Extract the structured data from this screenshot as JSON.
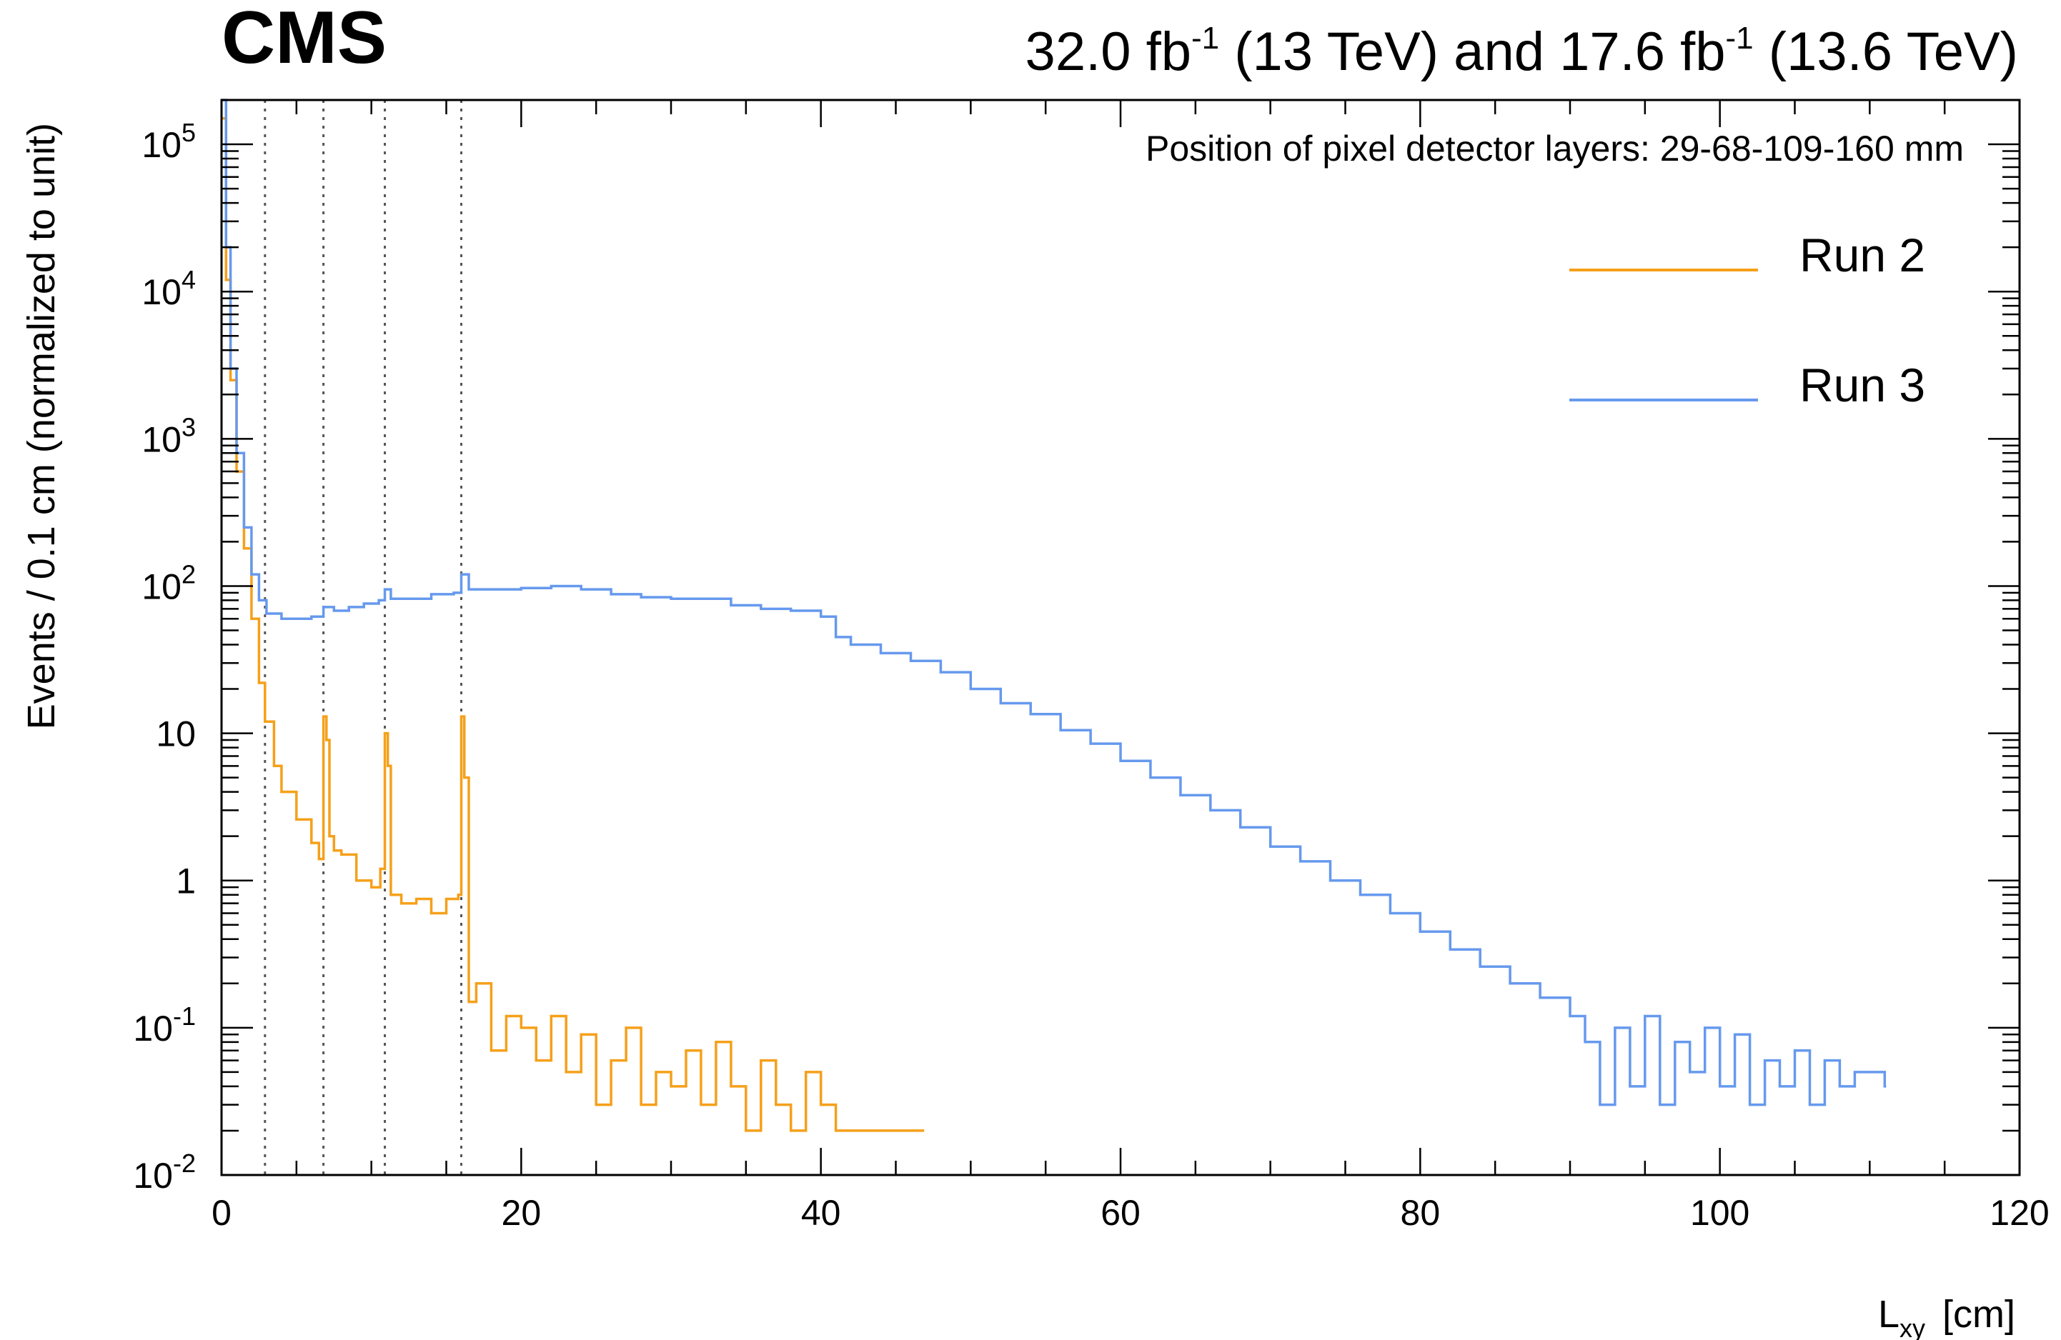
{
  "experiment": "CMS",
  "lumi": {
    "part1": "32.0 fb",
    "sup1": "-1",
    "part2": " (13 TeV) and 17.6 fb",
    "sup2": "-1",
    "part3": " (13.6 TeV)"
  },
  "annotation": "Position of pixel detector layers: 29-68-109-160 mm",
  "chart_data": {
    "type": "line",
    "xlabel_main": "L",
    "xlabel_sub": "xy",
    "xlabel_unit": "[cm]",
    "ylabel": "Events / 0.1 cm (normalized to unit)",
    "xlim": [
      0,
      120
    ],
    "ylim": [
      0.01,
      200000
    ],
    "yscale": "log",
    "x_ticks": [
      "0",
      "20",
      "40",
      "60",
      "80",
      "100",
      "120"
    ],
    "y_ticks": [
      {
        "value": 0.01,
        "base": "10",
        "sup": "-2"
      },
      {
        "value": 0.1,
        "base": "10",
        "sup": "-1"
      },
      {
        "value": 1,
        "base": "1",
        "sup": ""
      },
      {
        "value": 10,
        "base": "10",
        "sup": ""
      },
      {
        "value": 100,
        "base": "10",
        "sup": "2"
      },
      {
        "value": 1000,
        "base": "10",
        "sup": "3"
      },
      {
        "value": 10000,
        "base": "10",
        "sup": "4"
      },
      {
        "value": 100000,
        "base": "10",
        "sup": "5"
      }
    ],
    "layer_positions_cm": [
      2.9,
      6.8,
      10.9,
      16.0
    ],
    "legend_position": "top-right",
    "series": [
      {
        "name": "Run 2",
        "color": "#f5a01a",
        "points": [
          [
            0.0,
            150000
          ],
          [
            0.3,
            12000
          ],
          [
            0.6,
            2500
          ],
          [
            1.0,
            600
          ],
          [
            1.5,
            180
          ],
          [
            2.0,
            60
          ],
          [
            2.5,
            22
          ],
          [
            2.9,
            12
          ],
          [
            3.5,
            6
          ],
          [
            4.0,
            4
          ],
          [
            5.0,
            2.6
          ],
          [
            6.0,
            1.8
          ],
          [
            6.5,
            1.4
          ],
          [
            6.8,
            13
          ],
          [
            7.0,
            9
          ],
          [
            7.2,
            2.0
          ],
          [
            7.5,
            1.6
          ],
          [
            8.0,
            1.5
          ],
          [
            9.0,
            1.0
          ],
          [
            10.0,
            0.9
          ],
          [
            10.6,
            1.2
          ],
          [
            10.9,
            10
          ],
          [
            11.1,
            6
          ],
          [
            11.3,
            0.8
          ],
          [
            12.0,
            0.7
          ],
          [
            13.0,
            0.75
          ],
          [
            14.0,
            0.6
          ],
          [
            15.0,
            0.75
          ],
          [
            15.8,
            0.8
          ],
          [
            16.0,
            13
          ],
          [
            16.2,
            5
          ],
          [
            16.5,
            0.15
          ],
          [
            17.0,
            0.2
          ],
          [
            18.0,
            0.07
          ],
          [
            19.0,
            0.12
          ],
          [
            20.0,
            0.1
          ],
          [
            21.0,
            0.06
          ],
          [
            22.0,
            0.12
          ],
          [
            23.0,
            0.05
          ],
          [
            24.0,
            0.09
          ],
          [
            25.0,
            0.03
          ],
          [
            26.0,
            0.06
          ],
          [
            27.0,
            0.1
          ],
          [
            28.0,
            0.03
          ],
          [
            29.0,
            0.05
          ],
          [
            30.0,
            0.04
          ],
          [
            31.0,
            0.07
          ],
          [
            32.0,
            0.03
          ],
          [
            33.0,
            0.08
          ],
          [
            34.0,
            0.04
          ],
          [
            35.0,
            0.02
          ],
          [
            36.0,
            0.06
          ],
          [
            37.0,
            0.03
          ],
          [
            38.0,
            0.02
          ],
          [
            39.0,
            0.05
          ],
          [
            40.0,
            0.03
          ],
          [
            41.0,
            0.02
          ],
          [
            43.0,
            0.02
          ],
          [
            44.0,
            0.02
          ],
          [
            46.0,
            0.02
          ],
          [
            46.8,
            0.02
          ]
        ]
      },
      {
        "name": "Run 3",
        "color": "#6699ee",
        "points": [
          [
            0.0,
            200000
          ],
          [
            0.3,
            20000
          ],
          [
            0.6,
            3000
          ],
          [
            1.0,
            800
          ],
          [
            1.5,
            250
          ],
          [
            2.0,
            120
          ],
          [
            2.5,
            80
          ],
          [
            3.0,
            65
          ],
          [
            4.0,
            60
          ],
          [
            5.0,
            60
          ],
          [
            6.0,
            62
          ],
          [
            6.8,
            72
          ],
          [
            7.5,
            68
          ],
          [
            8.5,
            72
          ],
          [
            9.5,
            76
          ],
          [
            10.5,
            80
          ],
          [
            10.9,
            95
          ],
          [
            11.3,
            82
          ],
          [
            12.5,
            82
          ],
          [
            14.0,
            88
          ],
          [
            15.5,
            90
          ],
          [
            16.0,
            120
          ],
          [
            16.5,
            95
          ],
          [
            18.0,
            95
          ],
          [
            20.0,
            97
          ],
          [
            22.0,
            100
          ],
          [
            24.0,
            95
          ],
          [
            26.0,
            88
          ],
          [
            28.0,
            84
          ],
          [
            30.0,
            82
          ],
          [
            32.0,
            82
          ],
          [
            34.0,
            74
          ],
          [
            36.0,
            70
          ],
          [
            38.0,
            68
          ],
          [
            40.0,
            62
          ],
          [
            41.0,
            45
          ],
          [
            42.0,
            40
          ],
          [
            44.0,
            35
          ],
          [
            46.0,
            31
          ],
          [
            48.0,
            26
          ],
          [
            50.0,
            20
          ],
          [
            52.0,
            16
          ],
          [
            54.0,
            13.5
          ],
          [
            56.0,
            10.5
          ],
          [
            58.0,
            8.5
          ],
          [
            60.0,
            6.5
          ],
          [
            62.0,
            5
          ],
          [
            64.0,
            3.8
          ],
          [
            66.0,
            3.0
          ],
          [
            68.0,
            2.3
          ],
          [
            70.0,
            1.7
          ],
          [
            72.0,
            1.35
          ],
          [
            74.0,
            1.0
          ],
          [
            76.0,
            0.8
          ],
          [
            78.0,
            0.6
          ],
          [
            80.0,
            0.45
          ],
          [
            82.0,
            0.34
          ],
          [
            84.0,
            0.26
          ],
          [
            86.0,
            0.2
          ],
          [
            88.0,
            0.16
          ],
          [
            90.0,
            0.12
          ],
          [
            91.0,
            0.08
          ],
          [
            92.0,
            0.03
          ],
          [
            93.0,
            0.1
          ],
          [
            94.0,
            0.04
          ],
          [
            95.0,
            0.12
          ],
          [
            96.0,
            0.03
          ],
          [
            97.0,
            0.08
          ],
          [
            98.0,
            0.05
          ],
          [
            99.0,
            0.1
          ],
          [
            100.0,
            0.04
          ],
          [
            101.0,
            0.09
          ],
          [
            102.0,
            0.03
          ],
          [
            103.0,
            0.06
          ],
          [
            104.0,
            0.04
          ],
          [
            105.0,
            0.07
          ],
          [
            106.0,
            0.03
          ],
          [
            107.0,
            0.06
          ],
          [
            108.0,
            0.04
          ],
          [
            109.0,
            0.05
          ],
          [
            110.0,
            0.05
          ],
          [
            111.0,
            0.04
          ]
        ]
      }
    ]
  }
}
